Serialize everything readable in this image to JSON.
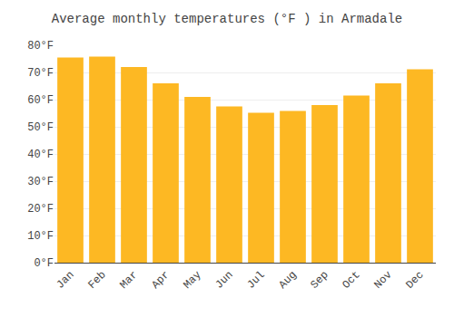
{
  "chart_data": {
    "type": "bar",
    "title": "Average monthly temperatures (°F ) in Armadale",
    "categories": [
      "Jan",
      "Feb",
      "Mar",
      "Apr",
      "May",
      "Jun",
      "Jul",
      "Aug",
      "Sep",
      "Oct",
      "Nov",
      "Dec"
    ],
    "values": [
      75.5,
      75.8,
      72.0,
      66.0,
      61.0,
      57.5,
      55.2,
      55.8,
      58.0,
      61.5,
      66.0,
      71.2
    ],
    "color": "#FDB823",
    "ylim": [
      0,
      80
    ],
    "yticks": [
      {
        "value": 0,
        "label": "0°F"
      },
      {
        "value": 10,
        "label": "10°F"
      },
      {
        "value": 20,
        "label": "20°F"
      },
      {
        "value": 30,
        "label": "30°F"
      },
      {
        "value": 40,
        "label": "40°F"
      },
      {
        "value": 50,
        "label": "50°F"
      },
      {
        "value": 60,
        "label": "60°F"
      },
      {
        "value": 70,
        "label": "70°F"
      },
      {
        "value": 80,
        "label": "80°F"
      }
    ],
    "grid": true
  }
}
